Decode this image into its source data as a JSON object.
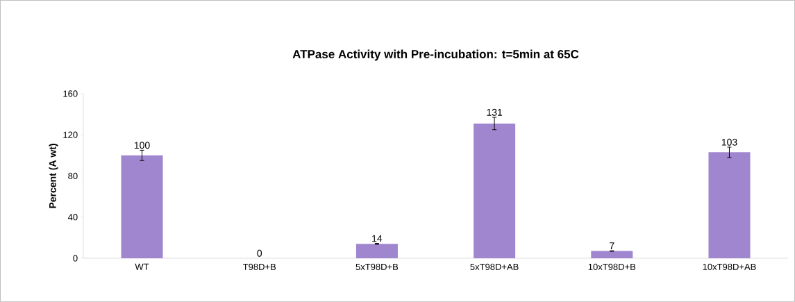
{
  "chart_data": {
    "type": "bar",
    "title": "ATPase Activity with Pre-incubation: t=5min at 65C",
    "ylabel": "Percent (A wt)",
    "categories": [
      "WT",
      "T98D+B",
      "5xT98D+B",
      "5xT98D+AB",
      "10xT98D+B",
      "10xT98D+AB"
    ],
    "values": [
      100,
      0,
      14,
      131,
      7,
      103
    ],
    "errors": [
      5,
      null,
      0.5,
      6,
      0.3,
      5
    ],
    "color": "#9f86cf",
    "ylim": [
      0,
      160
    ],
    "yticks": [
      0,
      40,
      80,
      120,
      160
    ],
    "data_labels": true,
    "grid": false
  }
}
